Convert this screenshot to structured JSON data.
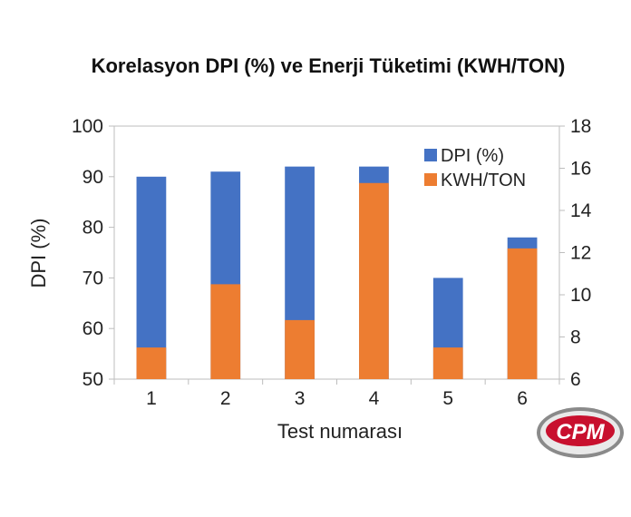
{
  "chart_data": {
    "type": "bar",
    "title": "Korelasyon DPI (%) ve Enerji Tüketimi (KWH/TON)",
    "xlabel": "Test numarası",
    "ylabel": "DPI (%)",
    "y2label": "",
    "categories": [
      "1",
      "2",
      "3",
      "4",
      "5",
      "6"
    ],
    "ylim": [
      50,
      100
    ],
    "y2lim": [
      6,
      18
    ],
    "yticks": [
      "50",
      "60",
      "70",
      "80",
      "90",
      "100"
    ],
    "y2ticks": [
      "6",
      "8",
      "10",
      "12",
      "14",
      "16",
      "18"
    ],
    "grid": false,
    "legend_position": "top-right",
    "series": [
      {
        "name": "DPI (%)",
        "axis": "left",
        "color": "#4472c4",
        "values": [
          90,
          91,
          92,
          92,
          70,
          78
        ]
      },
      {
        "name": "KWH/TON",
        "axis": "right",
        "color": "#ed7d31",
        "values": [
          7.5,
          10.5,
          8.8,
          15.3,
          7.5,
          12.2
        ]
      }
    ]
  },
  "logo": {
    "text": "CPM",
    "color": "#c8102e"
  }
}
